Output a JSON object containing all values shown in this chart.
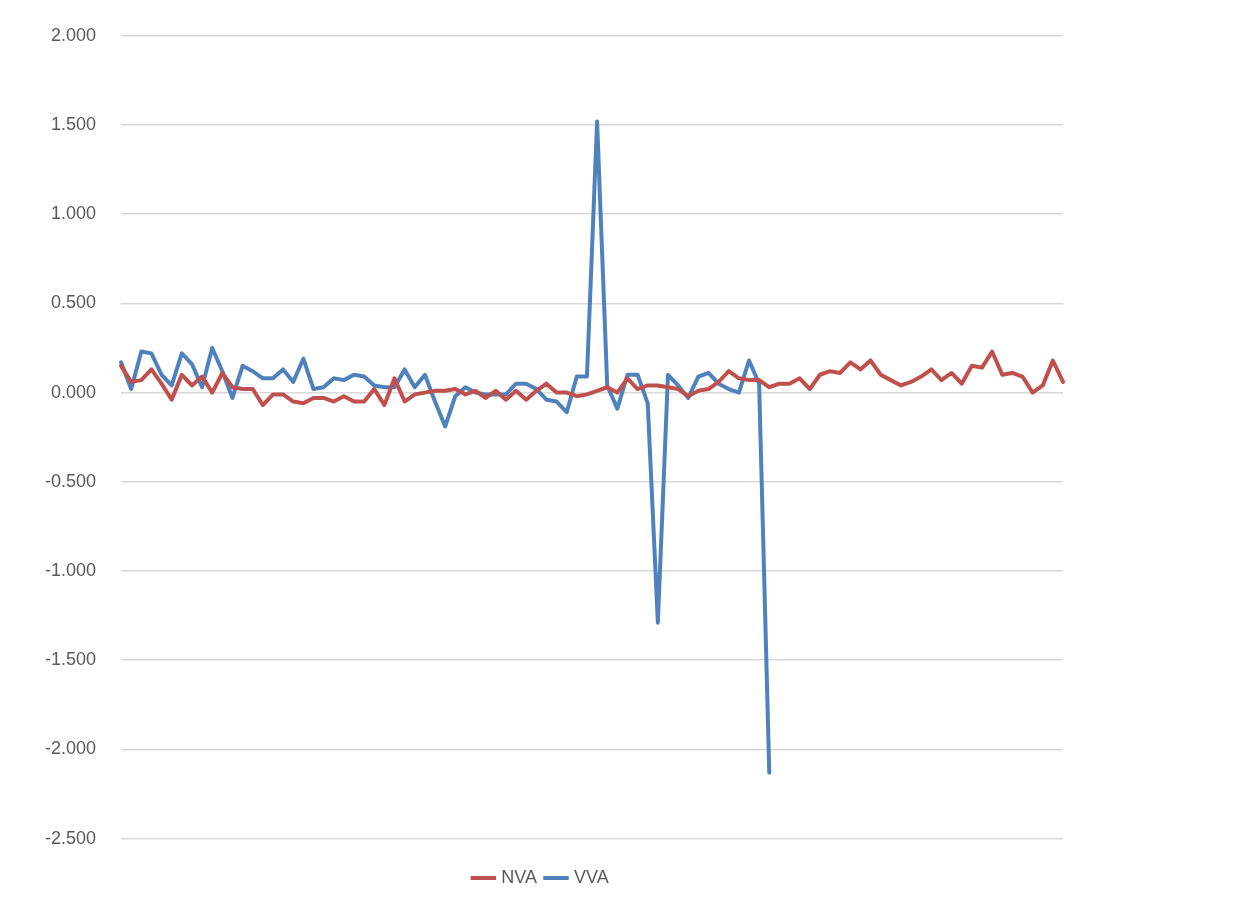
{
  "chart_data": {
    "type": "line",
    "categories": [
      null,
      null,
      null,
      null,
      null,
      null,
      null,
      null,
      null,
      null,
      null,
      null,
      null,
      null,
      null,
      null,
      null,
      null,
      null,
      null,
      null,
      null,
      null,
      null,
      null,
      null,
      null,
      null,
      null,
      null,
      null,
      null,
      null,
      null,
      null,
      null,
      null,
      null,
      null,
      null,
      null,
      null,
      null,
      null,
      null,
      null,
      null,
      null,
      null,
      null,
      null,
      null,
      null,
      null,
      null,
      null,
      null,
      null,
      null,
      null,
      null,
      null,
      null,
      null,
      null,
      null,
      null,
      null,
      null,
      null,
      null,
      null,
      null,
      null,
      null,
      null,
      null,
      null,
      null,
      null,
      null,
      null,
      null,
      null,
      null,
      null,
      null,
      null,
      null,
      null,
      null,
      null,
      null,
      null
    ],
    "series": [
      {
        "name": "NVA",
        "color": "#c0504d",
        "values": [
          0.15,
          0.06,
          0.07,
          0.13,
          0.05,
          -0.04,
          0.1,
          0.04,
          0.09,
          0.0,
          0.11,
          0.03,
          0.02,
          0.02,
          -0.07,
          -0.01,
          -0.01,
          -0.05,
          -0.06,
          -0.03,
          -0.03,
          -0.05,
          -0.02,
          -0.05,
          -0.05,
          0.02,
          -0.07,
          0.08,
          -0.05,
          -0.01,
          0.0,
          0.01,
          0.01,
          0.02,
          -0.01,
          0.01,
          -0.03,
          0.01,
          -0.04,
          0.01,
          -0.04,
          0.01,
          0.05,
          0.0,
          0.0,
          -0.02,
          -0.01,
          0.01,
          0.03,
          0.0,
          0.08,
          0.02,
          0.04,
          0.04,
          0.03,
          0.02,
          -0.02,
          0.01,
          0.02,
          0.06,
          0.12,
          0.08,
          0.07,
          0.07,
          0.03,
          0.05,
          0.05,
          0.08,
          0.02,
          0.1,
          0.12,
          0.11,
          0.17,
          0.13,
          0.18,
          0.1,
          0.07,
          0.04,
          0.06,
          0.09,
          0.13,
          0.07,
          0.11,
          0.05,
          0.15,
          0.14,
          0.23,
          0.1,
          0.11,
          0.09,
          0.0,
          0.04,
          0.18,
          0.06
        ]
      },
      {
        "name": "VVA",
        "color": "#4f81bd",
        "values": [
          0.17,
          0.02,
          0.23,
          0.22,
          0.1,
          0.04,
          0.22,
          0.16,
          0.03,
          0.25,
          0.12,
          -0.03,
          0.15,
          0.12,
          0.08,
          0.08,
          0.13,
          0.06,
          0.19,
          0.02,
          0.03,
          0.08,
          0.07,
          0.1,
          0.09,
          0.04,
          0.03,
          0.03,
          0.13,
          0.03,
          0.1,
          -0.05,
          -0.19,
          -0.02,
          0.03,
          0.0,
          -0.01,
          -0.01,
          -0.01,
          0.05,
          0.05,
          0.02,
          -0.04,
          -0.05,
          -0.11,
          0.09,
          0.09,
          1.52,
          0.04,
          -0.09,
          0.1,
          0.1,
          -0.06,
          -1.29,
          0.1,
          0.04,
          -0.03,
          0.09,
          0.11,
          0.05,
          0.02,
          0.0,
          0.18,
          0.05,
          -2.13,
          null,
          null,
          null,
          null,
          null,
          null,
          null,
          null,
          null,
          null,
          null,
          null,
          null,
          null,
          null,
          null,
          null,
          null,
          null,
          null,
          null,
          null,
          null,
          null,
          null,
          null,
          null,
          null,
          null
        ]
      }
    ],
    "ylim": [
      -2.5,
      2.0
    ],
    "yticks": [
      {
        "value": -2.5,
        "label": "-2.500"
      },
      {
        "value": -2.0,
        "label": "-2.000"
      },
      {
        "value": -1.5,
        "label": "-1.500"
      },
      {
        "value": -1.0,
        "label": "-1.000"
      },
      {
        "value": -0.5,
        "label": "-0.500"
      },
      {
        "value": 0.0,
        "label": "0.000"
      },
      {
        "value": 0.5,
        "label": "0.500"
      },
      {
        "value": 1.0,
        "label": "1.000"
      },
      {
        "value": 1.5,
        "label": "1.500"
      },
      {
        "value": 2.0,
        "label": "2.000"
      }
    ],
    "grid": "y",
    "legend": "bottom",
    "marker": "none",
    "line_style": "solid"
  }
}
